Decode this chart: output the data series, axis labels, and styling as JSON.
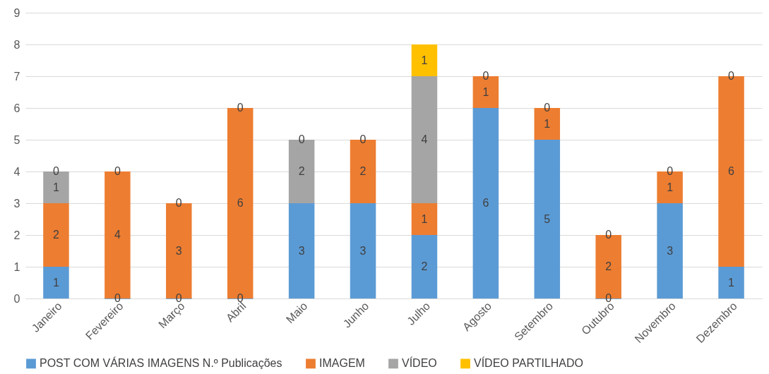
{
  "chart_data": {
    "type": "bar",
    "stacked": true,
    "grid": "y",
    "legend": "bottom",
    "categories": [
      "Janeiro",
      "Fevereiro",
      "Março",
      "Abril",
      "Maio",
      "Junho",
      "Julho",
      "Agosto",
      "Setembro",
      "Outubro",
      "Novembro",
      "Dezembro"
    ],
    "series": [
      {
        "name": "POST COM VÁRIAS IMAGENS N.º Publicações",
        "color": "#5b9bd5",
        "values": [
          1,
          0,
          0,
          0,
          3,
          3,
          2,
          6,
          5,
          0,
          3,
          1
        ],
        "value_labels": [
          "1",
          "0",
          "0",
          "0",
          "3",
          "3",
          "2",
          "6",
          "5",
          "0",
          "3",
          "1"
        ]
      },
      {
        "name": "IMAGEM",
        "color": "#ed7d31",
        "values": [
          2,
          4,
          3,
          6,
          0,
          2,
          1,
          1,
          1,
          2,
          1,
          6
        ],
        "value_labels": [
          "2",
          "4",
          "3",
          "6",
          null,
          "2",
          "1",
          "1",
          "1",
          "2",
          "1",
          "6"
        ]
      },
      {
        "name": "VÍDEO",
        "color": "#a5a5a5",
        "values": [
          1,
          0,
          0,
          0,
          2,
          0,
          4,
          0,
          0,
          0,
          0,
          0
        ],
        "value_labels": [
          "1",
          null,
          null,
          null,
          "2",
          null,
          "4",
          null,
          null,
          null,
          null,
          null
        ]
      },
      {
        "name": "VÍDEO PARTILHADO",
        "color": "#ffc000",
        "values": [
          0,
          0,
          0,
          0,
          0,
          0,
          1,
          0,
          0,
          0,
          0,
          0
        ],
        "value_labels": [
          "0",
          "0",
          "0",
          "0",
          "0",
          "0",
          "1",
          "0",
          "0",
          "0",
          "0",
          "0"
        ]
      }
    ],
    "ylim": [
      0,
      9
    ],
    "yticks": [
      0,
      1,
      2,
      3,
      4,
      5,
      6,
      7,
      8,
      9
    ]
  }
}
